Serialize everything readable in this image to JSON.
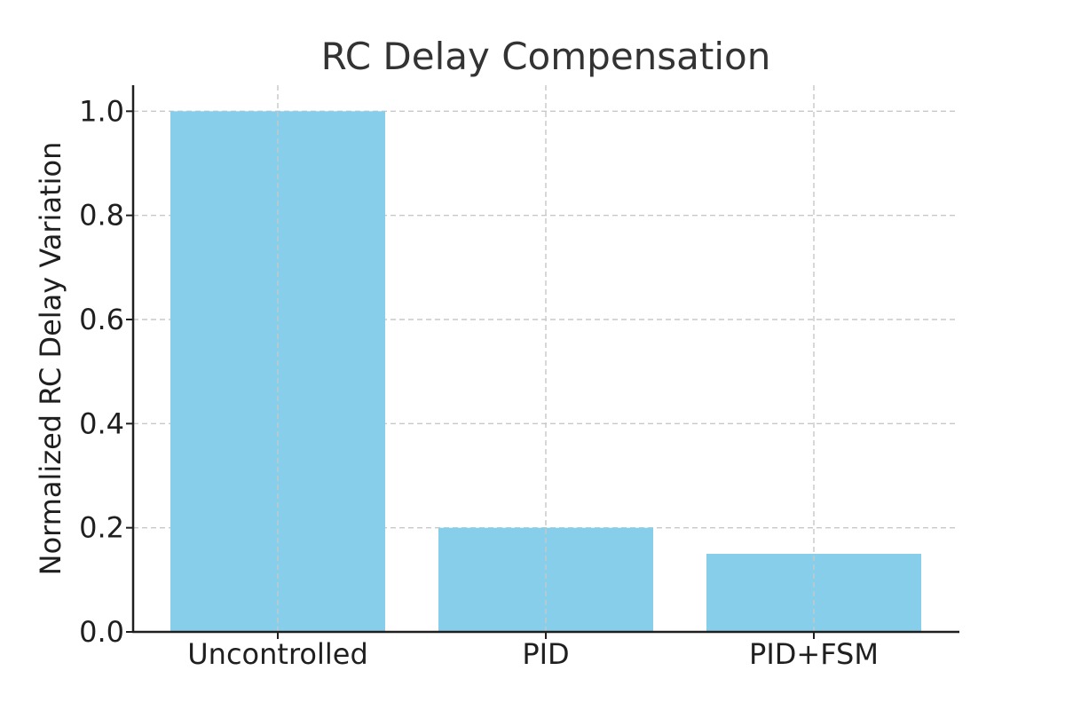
{
  "chart_data": {
    "type": "bar",
    "title": "RC Delay Compensation",
    "xlabel": "",
    "ylabel": "Normalized RC Delay Variation",
    "categories": [
      "Uncontrolled",
      "PID",
      "PID+FSM"
    ],
    "values": [
      1.0,
      0.2,
      0.15
    ],
    "ylim": [
      0,
      1.05
    ],
    "yticks": [
      "0.0",
      "0.2",
      "0.4",
      "0.6",
      "0.8",
      "1.0"
    ],
    "grid": true,
    "bar_color": "#87CEEB"
  }
}
